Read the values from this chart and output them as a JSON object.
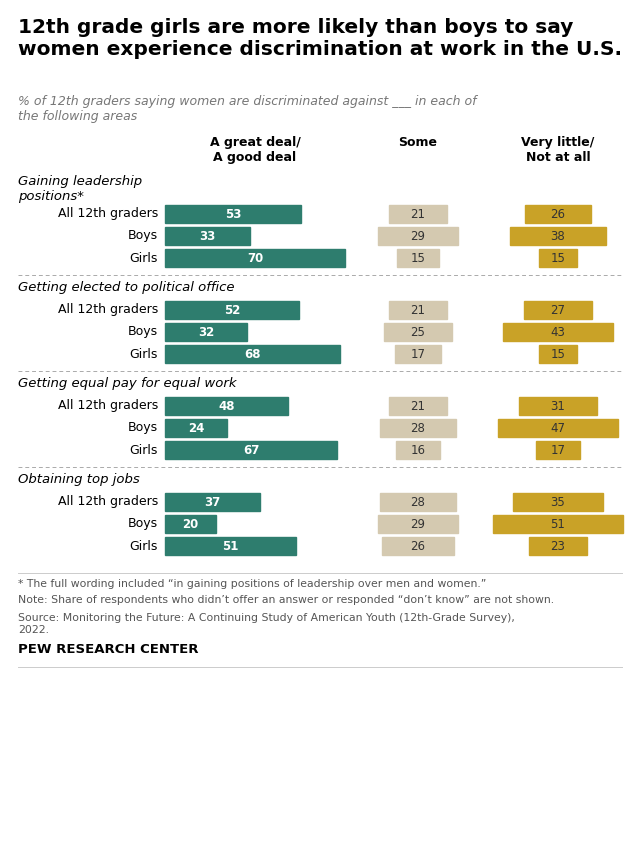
{
  "title": "12th grade girls are more likely than boys to say\nwomen experience discrimination at work in the U.S.",
  "subtitle": "% of 12th graders saying women are discriminated against ___ in each of\nthe following areas",
  "categories": [
    "Gaining leadership\npositions*",
    "Getting elected to political office",
    "Getting equal pay for equal work",
    "Obtaining top jobs"
  ],
  "rows": [
    "All 12th graders",
    "Boys",
    "Girls"
  ],
  "col_headers": [
    "A great deal/\nA good deal",
    "Some",
    "Very little/\nNot at all"
  ],
  "data": {
    "Gaining leadership\npositions*": {
      "All 12th graders": [
        53,
        21,
        26
      ],
      "Boys": [
        33,
        29,
        38
      ],
      "Girls": [
        70,
        15,
        15
      ]
    },
    "Getting elected to political office": {
      "All 12th graders": [
        52,
        21,
        27
      ],
      "Boys": [
        32,
        25,
        43
      ],
      "Girls": [
        68,
        17,
        15
      ]
    },
    "Getting equal pay for equal work": {
      "All 12th graders": [
        48,
        21,
        31
      ],
      "Boys": [
        24,
        28,
        47
      ],
      "Girls": [
        67,
        16,
        17
      ]
    },
    "Obtaining top jobs": {
      "All 12th graders": [
        37,
        28,
        35
      ],
      "Boys": [
        20,
        29,
        51
      ],
      "Girls": [
        51,
        26,
        23
      ]
    }
  },
  "colors": {
    "green": "#2E7D6E",
    "tan": "#D4C9B0",
    "gold": "#C9A227",
    "background": "#FFFFFF"
  },
  "footnote1": "* The full wording included “in gaining positions of leadership over men and women.”",
  "footnote2": "Note: Share of respondents who didn’t offer an answer or responded “don’t know” are not shown.",
  "footnote3": "Source: Monitoring the Future: A Continuing Study of American Youth (12th-Grade Survey),\n2022.",
  "footnote4": "PEW RESEARCH CENTER"
}
